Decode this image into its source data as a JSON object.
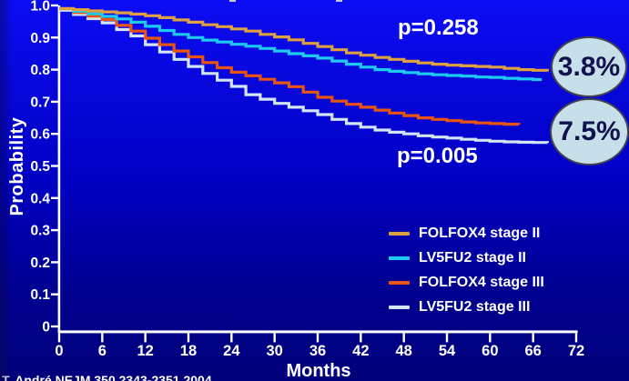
{
  "citation": "T. André NEJM 350 2343-2351 2004",
  "chart_data": {
    "type": "line",
    "subtype": "kaplan-meier-step",
    "title": "",
    "xlabel": "Months",
    "ylabel": "Probability",
    "xlim": [
      0,
      72
    ],
    "ylim": [
      0,
      1.0
    ],
    "grid": false,
    "legend_position": "lower-right-inside",
    "x_ticks": [
      0,
      6,
      12,
      18,
      24,
      30,
      36,
      42,
      48,
      54,
      60,
      66,
      72
    ],
    "y_ticks": [
      {
        "v": 1.0,
        "label": "1.0"
      },
      {
        "v": 0.9,
        "label": "0.9"
      },
      {
        "v": 0.8,
        "label": "0.8"
      },
      {
        "v": 0.7,
        "label": "0.7"
      },
      {
        "v": 0.6,
        "label": "0.6"
      },
      {
        "v": 0.5,
        "label": "0.5"
      },
      {
        "v": 0.4,
        "label": "0.4"
      },
      {
        "v": 0.3,
        "label": "0.3"
      },
      {
        "v": 0.2,
        "label": "0.2"
      },
      {
        "v": 0.1,
        "label": "0.1"
      },
      {
        "v": 0.0,
        "label": "0"
      }
    ],
    "annotations": [
      {
        "text": "p=0.258",
        "refers_to": "stage II curves"
      },
      {
        "text": "p=0.005",
        "refers_to": "stage III curves"
      }
    ],
    "badges": [
      {
        "text": "3.8%",
        "fill": "#c6dfe8",
        "text_color": "#12124f",
        "refers_to": "stage II difference"
      },
      {
        "text": "7.5%",
        "fill": "#c6dfe8",
        "text_color": "#12124f",
        "refers_to": "stage III difference"
      }
    ],
    "series": [
      {
        "name": "FOLFOX4 stage II",
        "color": "#dfa040",
        "points": [
          [
            0,
            0.99
          ],
          [
            2,
            0.987
          ],
          [
            4,
            0.983
          ],
          [
            6,
            0.98
          ],
          [
            8,
            0.977
          ],
          [
            10,
            0.973
          ],
          [
            12,
            0.968
          ],
          [
            14,
            0.962
          ],
          [
            16,
            0.955
          ],
          [
            18,
            0.948
          ],
          [
            20,
            0.94
          ],
          [
            22,
            0.934
          ],
          [
            24,
            0.927
          ],
          [
            26,
            0.92
          ],
          [
            28,
            0.91
          ],
          [
            30,
            0.902
          ],
          [
            32,
            0.893
          ],
          [
            34,
            0.882
          ],
          [
            36,
            0.872
          ],
          [
            38,
            0.862
          ],
          [
            40,
            0.852
          ],
          [
            42,
            0.845
          ],
          [
            44,
            0.838
          ],
          [
            46,
            0.832
          ],
          [
            48,
            0.826
          ],
          [
            50,
            0.821
          ],
          [
            52,
            0.817
          ],
          [
            54,
            0.814
          ],
          [
            56,
            0.812
          ],
          [
            58,
            0.81
          ],
          [
            60,
            0.808
          ],
          [
            62,
            0.804
          ],
          [
            64,
            0.8
          ],
          [
            66,
            0.798
          ],
          [
            68,
            0.795
          ]
        ]
      },
      {
        "name": "LV5FU2 stage II",
        "color": "#1ecbf0",
        "points": [
          [
            0,
            0.99
          ],
          [
            2,
            0.982
          ],
          [
            4,
            0.974
          ],
          [
            6,
            0.966
          ],
          [
            8,
            0.958
          ],
          [
            10,
            0.948
          ],
          [
            12,
            0.935
          ],
          [
            14,
            0.922
          ],
          [
            16,
            0.91
          ],
          [
            18,
            0.9
          ],
          [
            20,
            0.892
          ],
          [
            22,
            0.886
          ],
          [
            24,
            0.879
          ],
          [
            26,
            0.873
          ],
          [
            28,
            0.866
          ],
          [
            30,
            0.858
          ],
          [
            32,
            0.85
          ],
          [
            34,
            0.843
          ],
          [
            36,
            0.836
          ],
          [
            38,
            0.827
          ],
          [
            40,
            0.817
          ],
          [
            42,
            0.808
          ],
          [
            44,
            0.8
          ],
          [
            46,
            0.795
          ],
          [
            48,
            0.791
          ],
          [
            50,
            0.787
          ],
          [
            52,
            0.784
          ],
          [
            54,
            0.782
          ],
          [
            56,
            0.78
          ],
          [
            58,
            0.777
          ],
          [
            60,
            0.776
          ],
          [
            62,
            0.773
          ],
          [
            64,
            0.771
          ],
          [
            66,
            0.769
          ],
          [
            67,
            0.765
          ]
        ]
      },
      {
        "name": "FOLFOX4 stage III",
        "color": "#ea5411",
        "points": [
          [
            0,
            0.99
          ],
          [
            2,
            0.978
          ],
          [
            4,
            0.967
          ],
          [
            6,
            0.956
          ],
          [
            8,
            0.938
          ],
          [
            10,
            0.92
          ],
          [
            12,
            0.898
          ],
          [
            14,
            0.878
          ],
          [
            16,
            0.858
          ],
          [
            18,
            0.84
          ],
          [
            20,
            0.822
          ],
          [
            22,
            0.806
          ],
          [
            24,
            0.792
          ],
          [
            26,
            0.781
          ],
          [
            28,
            0.77
          ],
          [
            30,
            0.759
          ],
          [
            32,
            0.747
          ],
          [
            34,
            0.73
          ],
          [
            36,
            0.714
          ],
          [
            38,
            0.702
          ],
          [
            40,
            0.692
          ],
          [
            42,
            0.683
          ],
          [
            44,
            0.674
          ],
          [
            46,
            0.665
          ],
          [
            48,
            0.657
          ],
          [
            50,
            0.65
          ],
          [
            52,
            0.645
          ],
          [
            54,
            0.641
          ],
          [
            56,
            0.637
          ],
          [
            58,
            0.634
          ],
          [
            60,
            0.632
          ],
          [
            62,
            0.63
          ],
          [
            64,
            0.629
          ]
        ]
      },
      {
        "name": "LV5FU2 stage III",
        "color": "#d3e4f4",
        "points": [
          [
            0,
            0.985
          ],
          [
            2,
            0.972
          ],
          [
            4,
            0.959
          ],
          [
            6,
            0.946
          ],
          [
            8,
            0.925
          ],
          [
            10,
            0.905
          ],
          [
            12,
            0.878
          ],
          [
            14,
            0.855
          ],
          [
            16,
            0.832
          ],
          [
            18,
            0.81
          ],
          [
            20,
            0.788
          ],
          [
            22,
            0.767
          ],
          [
            24,
            0.748
          ],
          [
            26,
            0.722
          ],
          [
            28,
            0.708
          ],
          [
            30,
            0.695
          ],
          [
            32,
            0.683
          ],
          [
            34,
            0.672
          ],
          [
            36,
            0.66
          ],
          [
            38,
            0.645
          ],
          [
            40,
            0.632
          ],
          [
            42,
            0.621
          ],
          [
            44,
            0.612
          ],
          [
            46,
            0.605
          ],
          [
            48,
            0.6
          ],
          [
            50,
            0.594
          ],
          [
            52,
            0.59
          ],
          [
            54,
            0.587
          ],
          [
            56,
            0.583
          ],
          [
            58,
            0.58
          ],
          [
            60,
            0.577
          ],
          [
            62,
            0.575
          ],
          [
            64,
            0.574
          ],
          [
            66,
            0.573
          ],
          [
            68,
            0.572
          ]
        ]
      }
    ],
    "axis_color": "#ffffff",
    "tick_label_color": "#ffffff"
  }
}
